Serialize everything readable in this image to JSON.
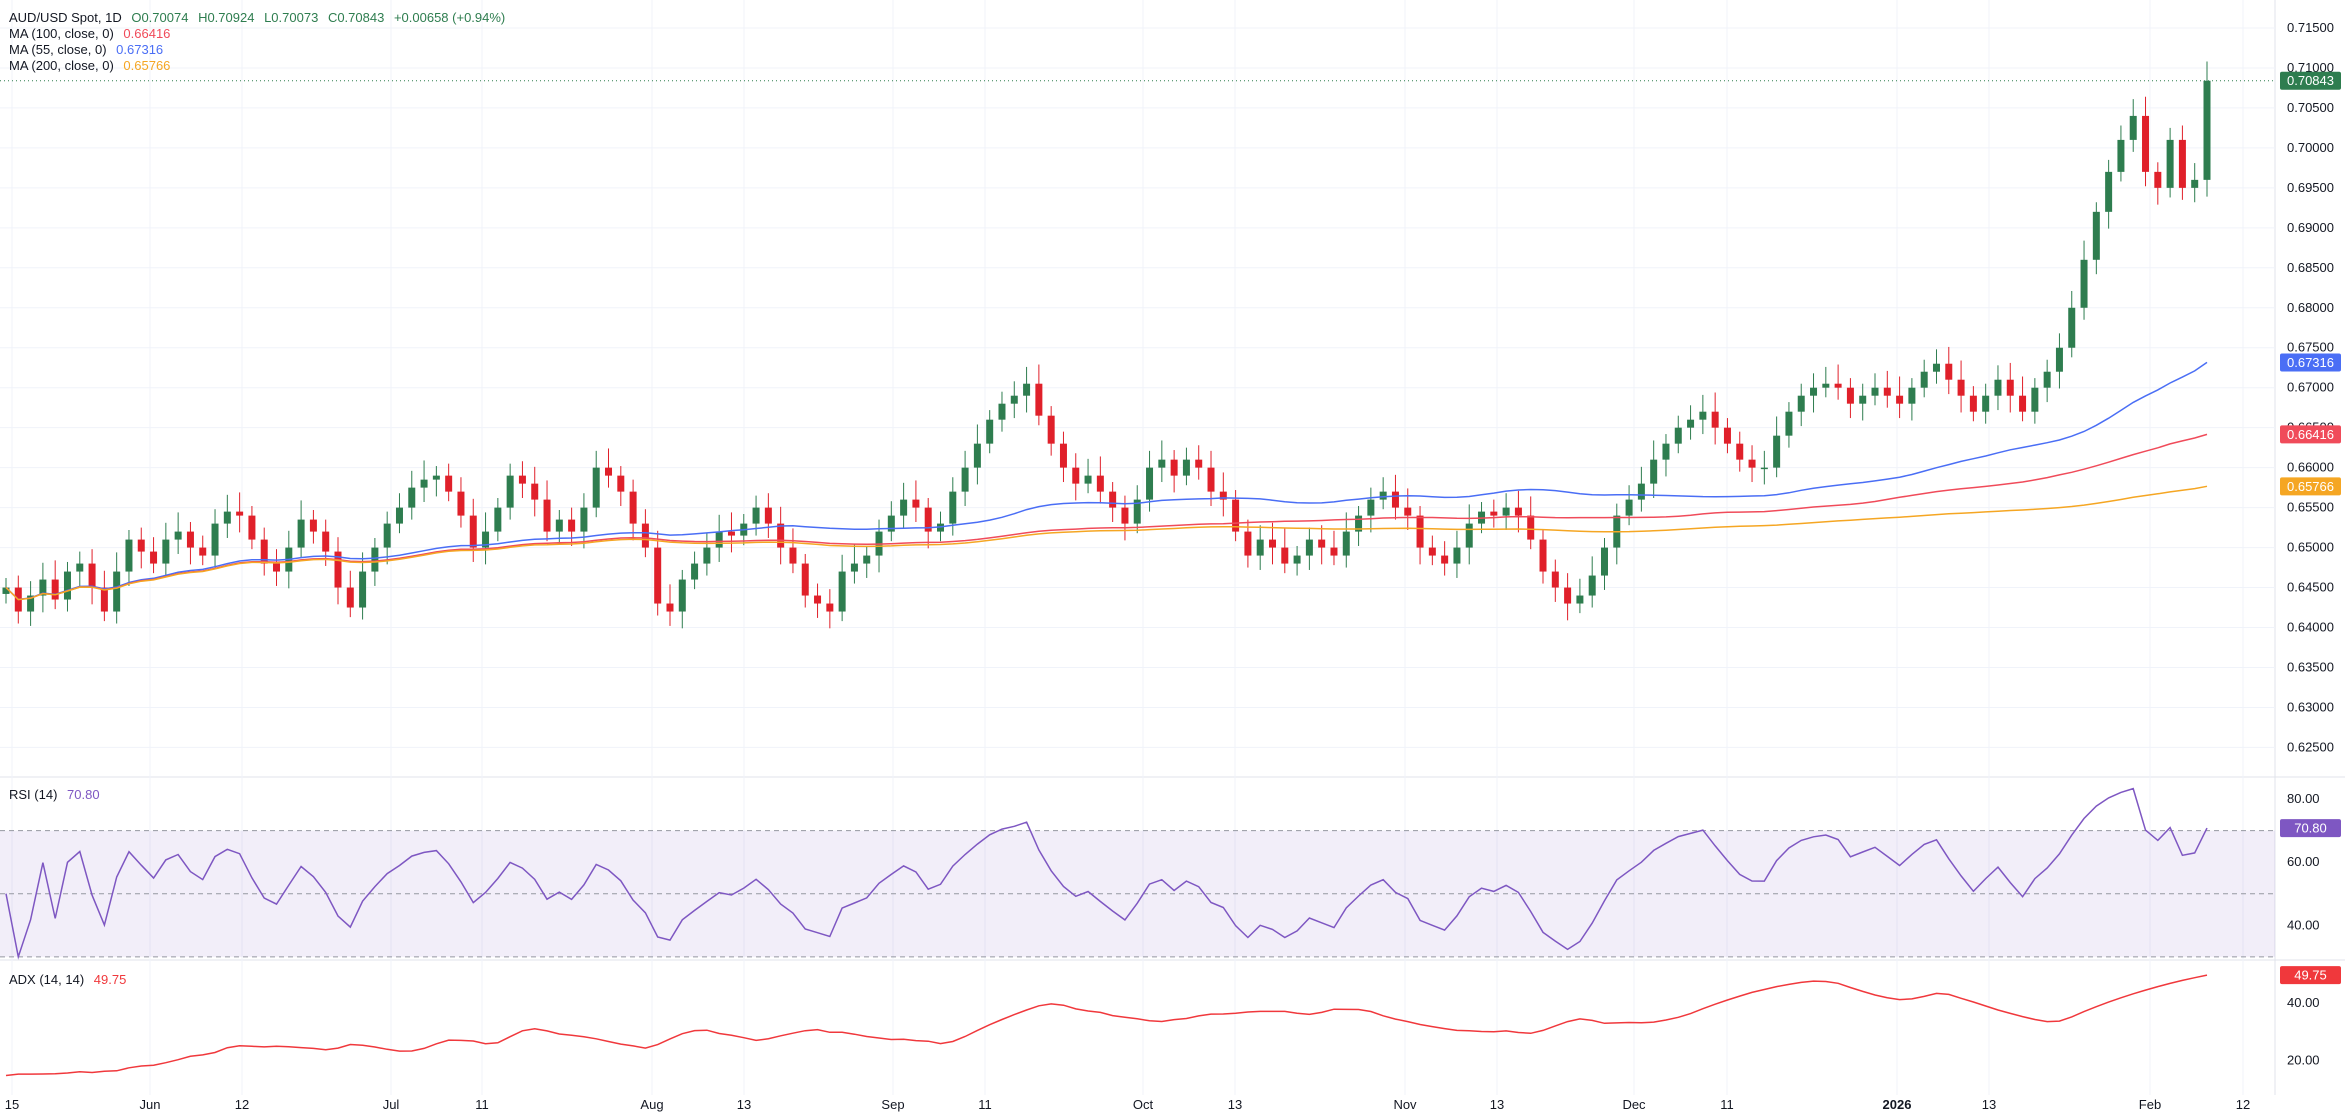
{
  "header": {
    "symbol": "AUD/USD Spot, 1D",
    "open": "O0.70074",
    "high": "H0.70924",
    "low": "L0.70073",
    "close": "C0.70843",
    "change": "+0.00658 (+0.94%)"
  },
  "legend": {
    "ma100_label": "MA (100, close, 0)",
    "ma100_value": "0.66416",
    "ma55_label": "MA (55, close, 0)",
    "ma55_value": "0.67316",
    "ma200_label": "MA (200, close, 0)",
    "ma200_value": "0.65766"
  },
  "rsi_panel": {
    "label": "RSI (14)",
    "value": "70.80",
    "ticks": [
      "80.00",
      "60.00",
      "40.00"
    ]
  },
  "adx_panel": {
    "label": "ADX (14, 14)",
    "value": "49.75",
    "ticks": [
      "40.00",
      "20.00"
    ]
  },
  "price_badges": {
    "last": "0.70843",
    "ma55": "0.67316",
    "ma100": "0.66416",
    "ma200": "0.65766"
  },
  "colors": {
    "up": "#2e7d4f",
    "down": "#e0202a",
    "ma55": "#4a6ef5",
    "ma100": "#f04b5a",
    "ma200": "#f5a623",
    "rsi": "#7e57c2",
    "adx": "#f0383c"
  },
  "chart_data": {
    "type": "candlestick",
    "x_tick_labels": [
      "15",
      "Jun",
      "12",
      "Jul",
      "11",
      "Aug",
      "13",
      "Sep",
      "11",
      "Oct",
      "13",
      "Nov",
      "13",
      "Dec",
      "11",
      "2026",
      "13",
      "Feb",
      "12"
    ],
    "y_tick_labels": [
      "0.71500",
      "0.71000",
      "0.70500",
      "0.70000",
      "0.69500",
      "0.69000",
      "0.68500",
      "0.68000",
      "0.67500",
      "0.67000",
      "0.66500",
      "0.66000",
      "0.65500",
      "0.65000",
      "0.64500",
      "0.64000",
      "0.63500",
      "0.63000",
      "0.62500"
    ],
    "ylim": [
      0.6213,
      0.7185
    ],
    "closes": [
      0.645,
      0.642,
      0.644,
      0.646,
      0.6435,
      0.647,
      0.648,
      0.645,
      0.642,
      0.647,
      0.651,
      0.6495,
      0.648,
      0.651,
      0.652,
      0.65,
      0.649,
      0.653,
      0.6545,
      0.654,
      0.651,
      0.648,
      0.647,
      0.65,
      0.6535,
      0.652,
      0.6495,
      0.645,
      0.6425,
      0.647,
      0.65,
      0.653,
      0.655,
      0.6575,
      0.6585,
      0.659,
      0.657,
      0.654,
      0.65,
      0.652,
      0.655,
      0.659,
      0.658,
      0.656,
      0.652,
      0.6535,
      0.652,
      0.655,
      0.66,
      0.659,
      0.657,
      0.653,
      0.65,
      0.643,
      0.642,
      0.646,
      0.648,
      0.65,
      0.652,
      0.6515,
      0.653,
      0.655,
      0.653,
      0.65,
      0.648,
      0.644,
      0.643,
      0.642,
      0.647,
      0.648,
      0.649,
      0.652,
      0.654,
      0.656,
      0.655,
      0.652,
      0.653,
      0.657,
      0.66,
      0.663,
      0.666,
      0.668,
      0.669,
      0.6705,
      0.6665,
      0.663,
      0.66,
      0.658,
      0.659,
      0.657,
      0.655,
      0.653,
      0.656,
      0.66,
      0.661,
      0.659,
      0.661,
      0.66,
      0.657,
      0.656,
      0.652,
      0.649,
      0.651,
      0.65,
      0.648,
      0.649,
      0.651,
      0.65,
      0.649,
      0.652,
      0.654,
      0.656,
      0.657,
      0.655,
      0.654,
      0.65,
      0.649,
      0.648,
      0.65,
      0.653,
      0.6545,
      0.654,
      0.655,
      0.654,
      0.651,
      0.647,
      0.645,
      0.643,
      0.644,
      0.6465,
      0.65,
      0.654,
      0.656,
      0.658,
      0.661,
      0.663,
      0.665,
      0.666,
      0.667,
      0.665,
      0.663,
      0.661,
      0.66,
      0.66,
      0.664,
      0.667,
      0.669,
      0.67,
      0.6705,
      0.67,
      0.668,
      0.669,
      0.67,
      0.669,
      0.668,
      0.67,
      0.672,
      0.673,
      0.671,
      0.669,
      0.667,
      0.669,
      0.671,
      0.669,
      0.667,
      0.67,
      0.672,
      0.675,
      0.68,
      0.686,
      0.692,
      0.697,
      0.701,
      0.704,
      0.697,
      0.695,
      0.701,
      0.695,
      0.696,
      0.7084
    ],
    "ma55_value": 0.67316,
    "ma100_value": 0.66416,
    "ma200_value": 0.65766,
    "rsi_ylim": [
      29.0,
      87.0
    ],
    "rsi_levels": [
      70,
      50,
      30
    ],
    "rsi_last": 70.8,
    "adx_ylim": [
      8.0,
      55.0
    ],
    "adx_last": 49.75
  }
}
